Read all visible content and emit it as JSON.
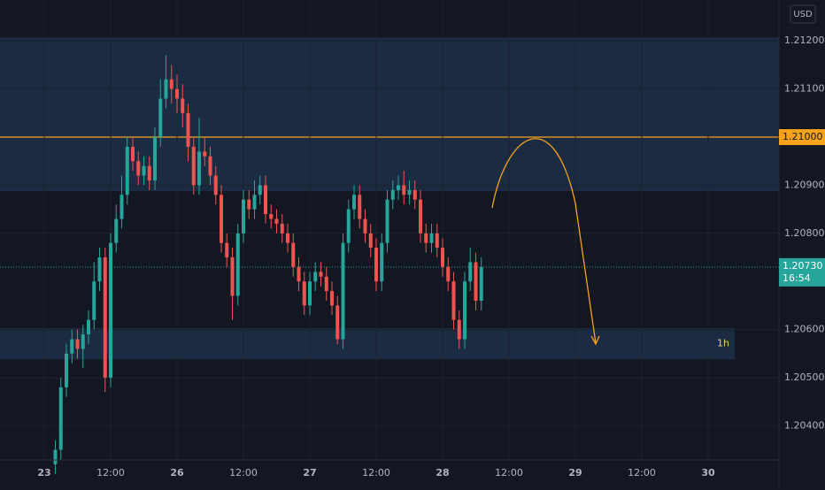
{
  "chart_data": {
    "type": "candlestick",
    "currency": "USD",
    "interval": "1h",
    "colors": {
      "up": "#26a69a",
      "down": "#ef5350",
      "zone": "#1b2b42",
      "level": "#f7a21b",
      "background": "#131722"
    },
    "xlim": [
      -8,
      132.8
    ],
    "ylim": [
      1.20329,
      1.21285
    ],
    "xticks": [
      {
        "value": 0,
        "label": "23"
      },
      {
        "value": 12,
        "label": "12:00"
      },
      {
        "value": 24,
        "label": "26"
      },
      {
        "value": 36,
        "label": "12:00"
      },
      {
        "value": 48,
        "label": "27"
      },
      {
        "value": 60,
        "label": "12:00"
      },
      {
        "value": 72,
        "label": "28"
      },
      {
        "value": 84,
        "label": "12:00"
      },
      {
        "value": 96,
        "label": "29"
      },
      {
        "value": 108,
        "label": "12:00"
      },
      {
        "value": 120,
        "label": "30"
      }
    ],
    "yticks": [
      {
        "value": 1.204,
        "label": "1.20400"
      },
      {
        "value": 1.205,
        "label": "1.20500"
      },
      {
        "value": 1.206,
        "label": "1.20600"
      },
      {
        "value": 1.208,
        "label": "1.20800"
      },
      {
        "value": 1.209,
        "label": "1.20900"
      },
      {
        "value": 1.211,
        "label": "1.21100"
      },
      {
        "value": 1.212,
        "label": "1.21200"
      }
    ],
    "zones": [
      {
        "low": 1.20888,
        "high": 1.21207
      },
      {
        "low": 1.20538,
        "high": 1.20603,
        "xmax": 124.8
      }
    ],
    "level": {
      "value": 1.21,
      "label": "1.21000"
    },
    "last_price": {
      "value": 1.2073,
      "label": "1.20730",
      "countdown": "16:54"
    },
    "x": [
      2,
      3,
      4,
      5,
      6,
      7,
      8,
      9,
      10,
      11,
      12,
      13,
      14,
      15,
      16,
      17,
      18,
      19,
      20,
      21,
      22,
      23,
      24,
      25,
      26,
      27,
      28,
      29,
      30,
      31,
      32,
      33,
      34,
      35,
      36,
      37,
      38,
      39,
      40,
      41,
      42,
      43,
      44,
      45,
      46,
      47,
      48,
      49,
      50,
      51,
      52,
      53,
      54,
      55,
      56,
      57,
      58,
      59,
      60,
      61,
      62,
      63,
      64,
      65,
      66,
      67,
      68,
      69,
      70,
      71,
      72,
      73,
      74,
      75,
      76,
      77,
      78,
      79
    ],
    "open": [
      1.2032,
      1.2035,
      1.2048,
      1.2055,
      1.2058,
      1.2056,
      1.2059,
      1.2062,
      1.207,
      1.2075,
      1.205,
      1.2078,
      1.2083,
      1.2088,
      1.2098,
      1.2095,
      1.2092,
      1.2094,
      1.2091,
      1.21,
      1.2108,
      1.2112,
      1.211,
      1.2108,
      1.2105,
      1.2098,
      1.209,
      1.2097,
      1.2096,
      1.2092,
      1.2088,
      1.2078,
      1.2075,
      1.2067,
      1.208,
      1.2087,
      1.2085,
      1.2088,
      1.209,
      1.2084,
      1.2083,
      1.2082,
      1.208,
      1.2078,
      1.2073,
      1.207,
      1.2065,
      1.207,
      1.2072,
      1.2071,
      1.2068,
      1.2065,
      1.2058,
      1.2078,
      1.2085,
      1.2088,
      1.2083,
      1.208,
      1.2077,
      1.207,
      1.2078,
      1.2087,
      1.2089,
      1.209,
      1.2088,
      1.2089,
      1.2087,
      1.208,
      1.2078,
      1.208,
      1.2077,
      1.2073,
      1.207,
      1.2062,
      1.2058,
      1.207,
      1.2074,
      1.2066
    ],
    "high": [
      1.2037,
      1.205,
      1.2057,
      1.206,
      1.206,
      1.2061,
      1.2064,
      1.2074,
      1.2077,
      1.2077,
      1.208,
      1.2086,
      1.2092,
      1.21,
      1.21,
      1.2097,
      1.2096,
      1.2096,
      1.2102,
      1.2112,
      1.2117,
      1.2115,
      1.2113,
      1.2111,
      1.2107,
      1.21,
      1.2104,
      1.21,
      1.2098,
      1.2094,
      1.209,
      1.208,
      1.2077,
      1.2082,
      1.2089,
      1.2089,
      1.2091,
      1.2092,
      1.2092,
      1.2086,
      1.2085,
      1.2084,
      1.2082,
      1.208,
      1.2075,
      1.2072,
      1.2072,
      1.2074,
      1.2074,
      1.2073,
      1.207,
      1.2067,
      1.208,
      1.2087,
      1.209,
      1.209,
      1.2085,
      1.2082,
      1.2079,
      1.208,
      1.2089,
      1.2091,
      1.2092,
      1.2093,
      1.2091,
      1.2091,
      1.2089,
      1.2082,
      1.2082,
      1.2082,
      1.2079,
      1.2075,
      1.2072,
      1.2064,
      1.2072,
      1.2077,
      1.2076,
      1.2075
    ],
    "low": [
      1.203,
      1.2033,
      1.2046,
      1.2053,
      1.2054,
      1.2052,
      1.2057,
      1.206,
      1.2068,
      1.2047,
      1.2048,
      1.2076,
      1.2081,
      1.2086,
      1.2093,
      1.209,
      1.209,
      1.2089,
      1.2089,
      1.2098,
      1.2106,
      1.2107,
      1.2105,
      1.2102,
      1.2095,
      1.2088,
      1.2088,
      1.2094,
      1.209,
      1.2086,
      1.2076,
      1.2073,
      1.2062,
      1.2065,
      1.2078,
      1.2083,
      1.2083,
      1.2086,
      1.2082,
      1.2081,
      1.208,
      1.2078,
      1.2076,
      1.2071,
      1.2068,
      1.2063,
      1.2063,
      1.2068,
      1.2069,
      1.2066,
      1.2063,
      1.2057,
      1.2056,
      1.2076,
      1.2083,
      1.2081,
      1.2078,
      1.2075,
      1.2068,
      1.2068,
      1.2076,
      1.2085,
      1.2087,
      1.2086,
      1.2086,
      1.2085,
      1.2078,
      1.2076,
      1.2076,
      1.2075,
      1.2071,
      1.2068,
      1.206,
      1.2056,
      1.2056,
      1.2068,
      1.2064,
      1.2064
    ],
    "close": [
      1.2035,
      1.2048,
      1.2055,
      1.2058,
      1.2056,
      1.2059,
      1.2062,
      1.207,
      1.2075,
      1.205,
      1.2078,
      1.2083,
      1.2088,
      1.2098,
      1.2095,
      1.2092,
      1.2094,
      1.2091,
      1.21,
      1.2108,
      1.2112,
      1.211,
      1.2108,
      1.2105,
      1.2098,
      1.209,
      1.2097,
      1.2096,
      1.2092,
      1.2088,
      1.2078,
      1.2075,
      1.2067,
      1.208,
      1.2087,
      1.2085,
      1.2088,
      1.209,
      1.2084,
      1.2083,
      1.2082,
      1.208,
      1.2078,
      1.2073,
      1.207,
      1.2065,
      1.207,
      1.2072,
      1.2071,
      1.2068,
      1.2065,
      1.2058,
      1.2078,
      1.2085,
      1.2088,
      1.2083,
      1.208,
      1.2077,
      1.207,
      1.2078,
      1.2087,
      1.2089,
      1.209,
      1.2088,
      1.2089,
      1.2087,
      1.208,
      1.2078,
      1.208,
      1.2077,
      1.2073,
      1.207,
      1.2062,
      1.2058,
      1.207,
      1.2074,
      1.2066,
      1.2073
    ]
  }
}
